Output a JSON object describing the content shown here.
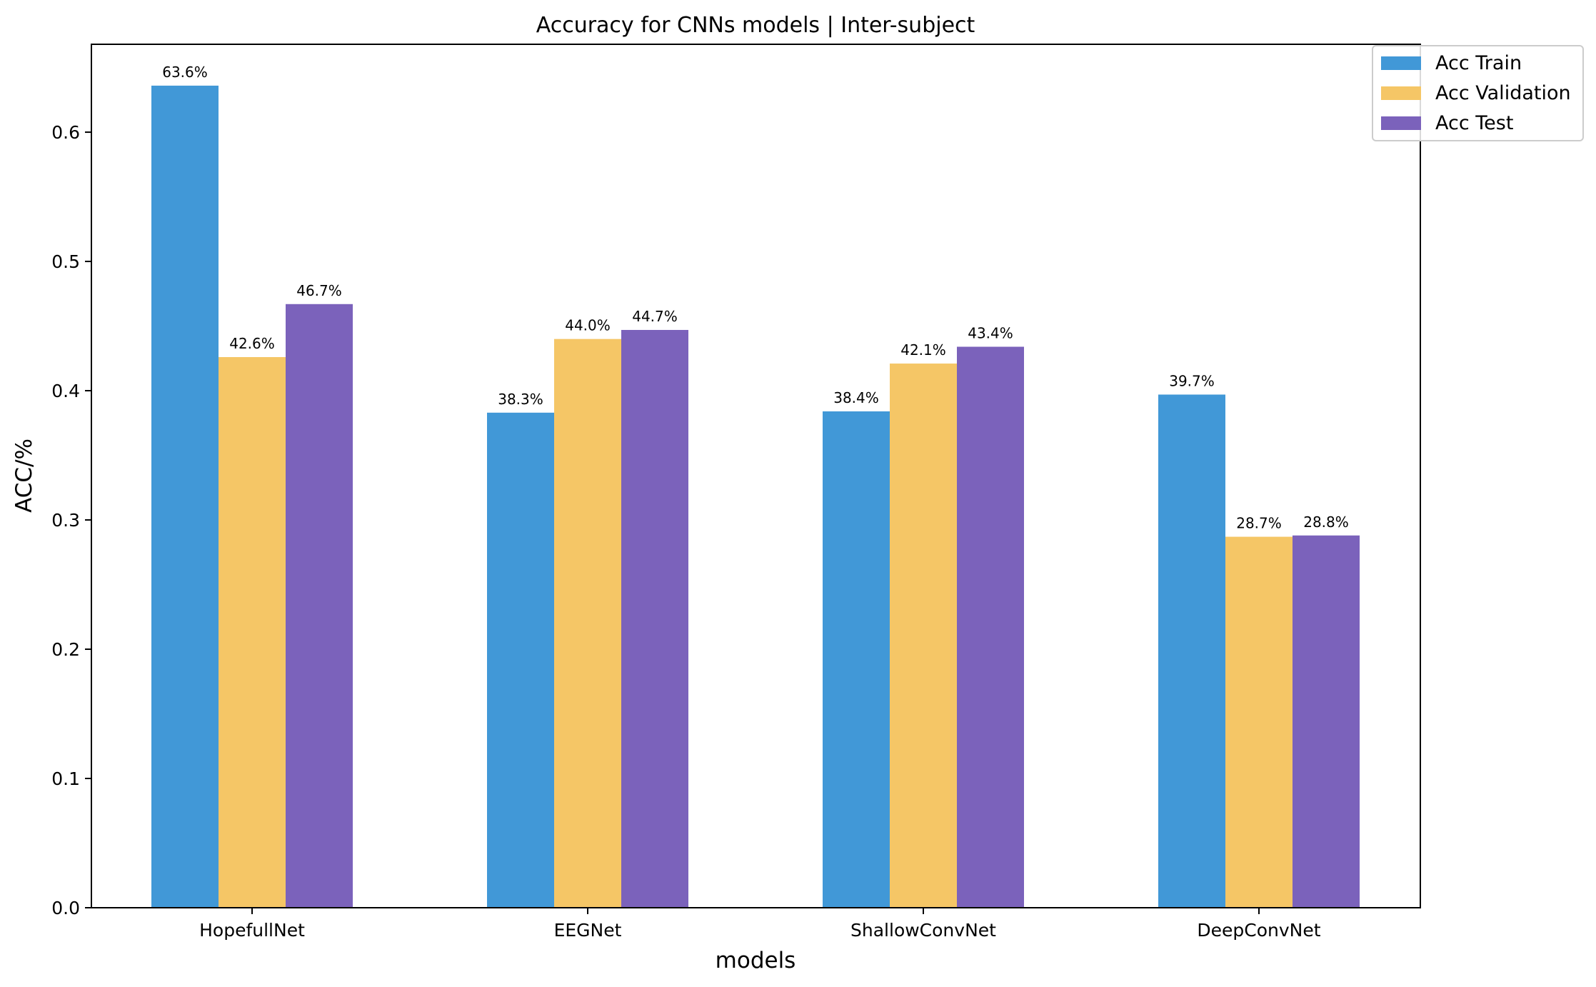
{
  "chart_data": {
    "type": "bar",
    "title": "Accuracy for CNNs models | Inter-subject",
    "xlabel": "models",
    "ylabel": "ACC/%",
    "categories": [
      "HopefullNet",
      "EEGNet",
      "ShallowConvNet",
      "DeepConvNet"
    ],
    "series": [
      {
        "name": "Acc Train",
        "color": "#4198d7",
        "values": [
          0.636,
          0.383,
          0.384,
          0.397
        ],
        "labels": [
          "63.6%",
          "38.3%",
          "38.4%",
          "39.7%"
        ]
      },
      {
        "name": "Acc Validation",
        "color": "#f5c666",
        "values": [
          0.426,
          0.44,
          0.421,
          0.287
        ],
        "labels": [
          "42.6%",
          "44.0%",
          "42.1%",
          "28.7%"
        ]
      },
      {
        "name": "Acc Test",
        "color": "#7b62bb",
        "values": [
          0.467,
          0.447,
          0.434,
          0.288
        ],
        "labels": [
          "46.7%",
          "44.7%",
          "43.4%",
          "28.8%"
        ]
      }
    ],
    "ylim": [
      0,
      0.668
    ],
    "yticks": [
      0.0,
      0.1,
      0.2,
      0.3,
      0.4,
      0.5,
      0.6
    ],
    "ytick_labels": [
      "0.0",
      "0.1",
      "0.2",
      "0.3",
      "0.4",
      "0.5",
      "0.6"
    ],
    "grid": false,
    "legend_position": "top-right"
  }
}
